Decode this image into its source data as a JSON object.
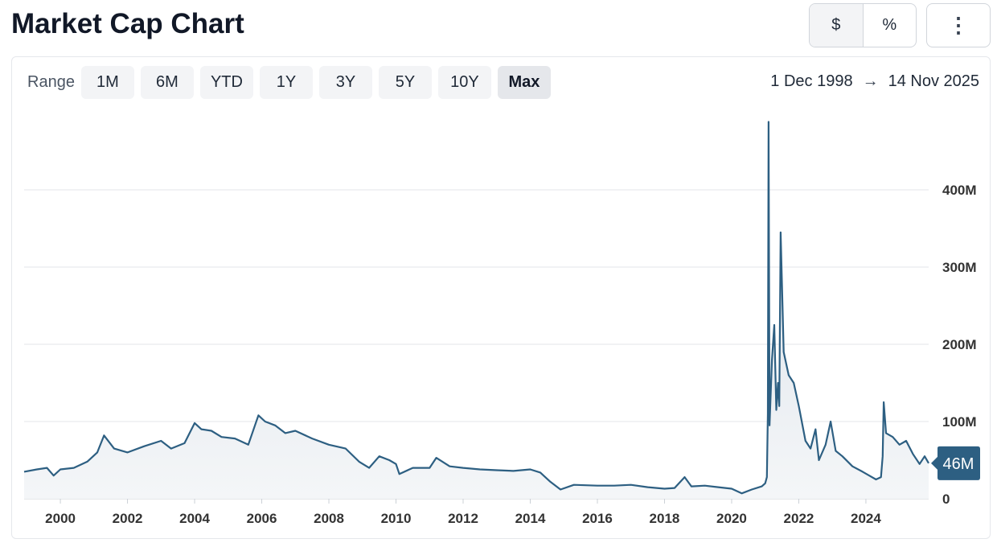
{
  "header": {
    "title": "Market Cap Chart",
    "toggle": [
      "$",
      "%"
    ],
    "active_toggle": "$",
    "more_icon": "vertical-ellipsis-icon"
  },
  "range": {
    "label": "Range",
    "buttons": [
      "1M",
      "6M",
      "YTD",
      "1Y",
      "3Y",
      "5Y",
      "10Y",
      "Max"
    ],
    "active": "Max"
  },
  "date_range": {
    "start": "1 Dec 1998",
    "arrow": "→",
    "end": "14 Nov 2025"
  },
  "chart_data": {
    "type": "area",
    "title": "",
    "xlabel": "",
    "ylabel": "",
    "xlim": [
      1998.92,
      2025.87
    ],
    "ylim": [
      0,
      500
    ],
    "unit": "M",
    "grid": true,
    "line_color": "#2d5f82",
    "x_ticks": [
      "2000",
      "2002",
      "2004",
      "2006",
      "2008",
      "2010",
      "2012",
      "2014",
      "2016",
      "2018",
      "2020",
      "2022",
      "2024"
    ],
    "y_ticks": [
      "0",
      "100M",
      "200M",
      "300M",
      "400M"
    ],
    "y_tick_values": [
      0,
      100,
      200,
      300,
      400
    ],
    "current_label": "46M",
    "x": [
      1998.92,
      1999.3,
      1999.6,
      1999.8,
      2000,
      2000.4,
      2000.8,
      2001.1,
      2001.3,
      2001.6,
      2002,
      2002.5,
      2003,
      2003.3,
      2003.7,
      2004,
      2004.2,
      2004.5,
      2004.8,
      2005.2,
      2005.6,
      2005.9,
      2006.1,
      2006.4,
      2006.7,
      2007,
      2007.5,
      2008,
      2008.5,
      2008.9,
      2009.2,
      2009.5,
      2009.8,
      2010,
      2010.1,
      2010.5,
      2011,
      2011.2,
      2011.6,
      2012,
      2012.5,
      2013,
      2013.5,
      2014,
      2014.3,
      2014.6,
      2014.9,
      2015.3,
      2016,
      2016.5,
      2017,
      2017.5,
      2018,
      2018.3,
      2018.6,
      2018.8,
      2019.2,
      2019.6,
      2020,
      2020.3,
      2020.6,
      2020.9,
      2021.0,
      2021.05,
      2021.08,
      2021.1,
      2021.13,
      2021.2,
      2021.27,
      2021.33,
      2021.38,
      2021.42,
      2021.46,
      2021.55,
      2021.7,
      2021.85,
      2022,
      2022.2,
      2022.35,
      2022.5,
      2022.6,
      2022.8,
      2022.95,
      2023.1,
      2023.3,
      2023.6,
      2023.9,
      2024.1,
      2024.3,
      2024.45,
      2024.5,
      2024.53,
      2024.6,
      2024.8,
      2025.0,
      2025.2,
      2025.4,
      2025.6,
      2025.75,
      2025.87
    ],
    "y": [
      35,
      38,
      40,
      30,
      38,
      40,
      48,
      60,
      82,
      65,
      60,
      68,
      75,
      65,
      72,
      98,
      90,
      88,
      80,
      78,
      70,
      108,
      100,
      95,
      85,
      88,
      78,
      70,
      65,
      48,
      40,
      55,
      50,
      45,
      32,
      40,
      40,
      53,
      42,
      40,
      38,
      37,
      36,
      38,
      34,
      22,
      12,
      18,
      17,
      17,
      18,
      15,
      13,
      14,
      28,
      16,
      17,
      15,
      13,
      7,
      12,
      16,
      20,
      28,
      110,
      488,
      95,
      180,
      225,
      115,
      150,
      120,
      345,
      190,
      160,
      150,
      120,
      75,
      65,
      90,
      50,
      70,
      100,
      62,
      55,
      42,
      35,
      30,
      25,
      28,
      55,
      125,
      85,
      80,
      70,
      75,
      58,
      45,
      55,
      46
    ]
  }
}
